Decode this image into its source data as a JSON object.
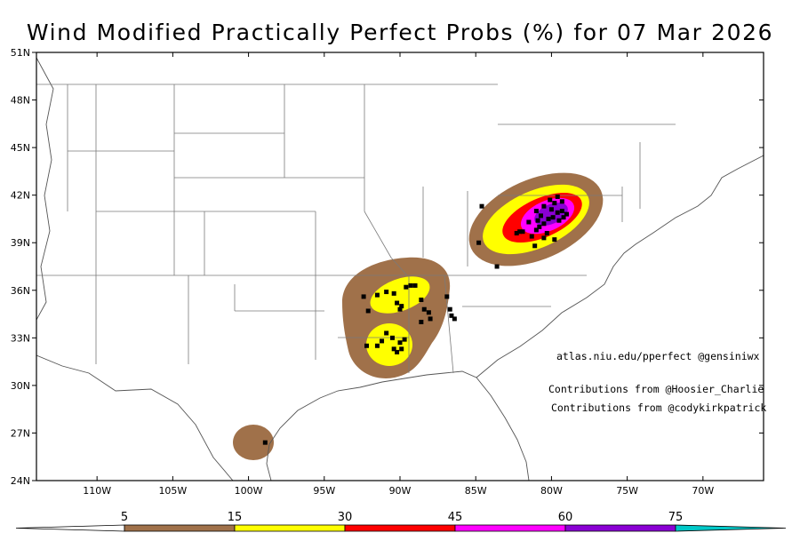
{
  "title": "Wind Modified Practically Perfect Probs (%) for 07 Mar 2026",
  "map": {
    "lat_labels": [
      "51N",
      "48N",
      "45N",
      "42N",
      "39N",
      "36N",
      "33N",
      "30N",
      "27N",
      "24N"
    ],
    "lon_labels": [
      "110W",
      "105W",
      "100W",
      "95W",
      "90W",
      "85W",
      "80W",
      "75W",
      "70W"
    ],
    "extent": {
      "lon_min": -114,
      "lon_max": -66,
      "lat_min": 24,
      "lat_max": 51
    }
  },
  "credits": {
    "site": "atlas.niu.edu/pperfect @gensiniwx",
    "contrib1": "Contributions from @Hoosier_Charlie",
    "contrib2": "Contributions from @codykirkpatrick"
  },
  "colorbar": {
    "labels": [
      "5",
      "15",
      "30",
      "45",
      "60",
      "75"
    ],
    "colors": [
      "#a0714a",
      "#ffff00",
      "#ff0000",
      "#ff00ff",
      "#8a00d4",
      "#00c8c8"
    ],
    "levels": [
      5,
      15,
      30,
      45,
      60,
      75
    ]
  },
  "reports_note": "wind reports plotted as black squares",
  "reports": [
    [
      -90.2,
      35.2
    ],
    [
      -90.4,
      35.8
    ],
    [
      -90.9,
      35.9
    ],
    [
      -91.5,
      35.7
    ],
    [
      -89.6,
      36.2
    ],
    [
      -89.3,
      36.3
    ],
    [
      -89.0,
      36.3
    ],
    [
      -89.9,
      35.0
    ],
    [
      -90.0,
      34.8
    ],
    [
      -88.6,
      35.4
    ],
    [
      -88.4,
      34.8
    ],
    [
      -88.1,
      34.6
    ],
    [
      -88.6,
      34.0
    ],
    [
      -88.0,
      34.2
    ],
    [
      -86.7,
      34.8
    ],
    [
      -86.6,
      34.4
    ],
    [
      -86.4,
      34.2
    ],
    [
      -86.9,
      35.6
    ],
    [
      -92.1,
      34.7
    ],
    [
      -90.9,
      33.3
    ],
    [
      -90.5,
      33.0
    ],
    [
      -90.0,
      32.7
    ],
    [
      -89.9,
      32.3
    ],
    [
      -90.2,
      32.1
    ],
    [
      -90.4,
      32.3
    ],
    [
      -89.7,
      32.9
    ],
    [
      -91.2,
      32.8
    ],
    [
      -91.5,
      32.5
    ],
    [
      -92.4,
      35.6
    ],
    [
      -92.2,
      32.5
    ],
    [
      -98.9,
      26.4
    ],
    [
      -84.6,
      41.3
    ],
    [
      -84.8,
      39.0
    ],
    [
      -82.3,
      39.6
    ],
    [
      -82.1,
      39.7
    ],
    [
      -81.9,
      39.7
    ],
    [
      -81.3,
      39.4
    ],
    [
      -81.0,
      39.8
    ],
    [
      -80.8,
      40.0
    ],
    [
      -80.5,
      40.2
    ],
    [
      -80.2,
      40.5
    ],
    [
      -79.9,
      40.6
    ],
    [
      -79.6,
      40.9
    ],
    [
      -79.3,
      41.0
    ],
    [
      -79.5,
      40.4
    ],
    [
      -79.2,
      40.6
    ],
    [
      -79.0,
      40.8
    ],
    [
      -80.0,
      41.1
    ],
    [
      -80.5,
      41.3
    ],
    [
      -81.0,
      41.0
    ],
    [
      -80.7,
      40.7
    ],
    [
      -80.9,
      40.4
    ],
    [
      -79.8,
      41.5
    ],
    [
      -79.3,
      41.6
    ],
    [
      -80.1,
      41.7
    ],
    [
      -79.6,
      41.9
    ],
    [
      -81.5,
      40.3
    ],
    [
      -80.5,
      39.3
    ],
    [
      -79.8,
      39.2
    ],
    [
      -80.3,
      39.6
    ],
    [
      -83.6,
      37.5
    ],
    [
      -81.1,
      38.8
    ]
  ]
}
